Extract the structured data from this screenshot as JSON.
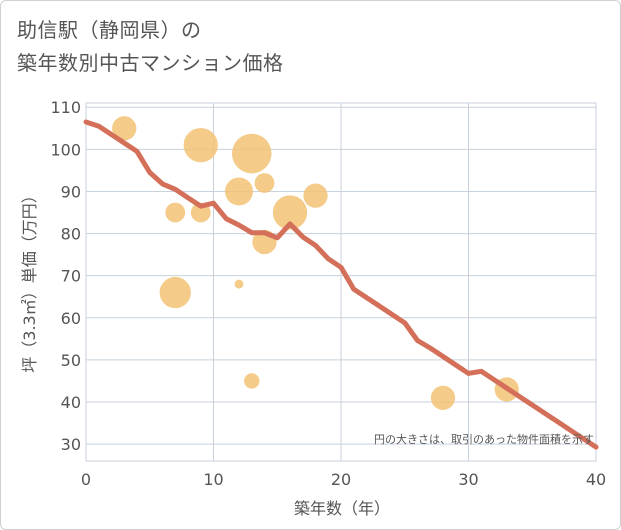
{
  "title": {
    "line1": "助信駅（静岡県）の",
    "line2": "築年数別中古マンション価格"
  },
  "colors": {
    "line": "#d4705a",
    "bubble": "#f2c274",
    "grid": "#c8d2dc",
    "text": "#555555"
  },
  "chart_data": {
    "type": "scatter",
    "title": "助信駅（静岡県）の築年数別中古マンション価格",
    "xlabel": "築年数（年）",
    "ylabel": "坪（3.3㎡）単価（万円）",
    "xlim": [
      0,
      40
    ],
    "ylim": [
      26,
      111
    ],
    "xticks": [
      0,
      10,
      20,
      30,
      40
    ],
    "yticks": [
      30,
      40,
      50,
      60,
      70,
      80,
      90,
      100,
      110
    ],
    "grid": true,
    "note": "円の大きさは、取引のあった物件面積を示す",
    "bubbles": [
      {
        "x": 3,
        "y": 105,
        "size": 3
      },
      {
        "x": 7,
        "y": 85,
        "size": 2
      },
      {
        "x": 7,
        "y": 66,
        "size": 5
      },
      {
        "x": 9,
        "y": 101,
        "size": 6
      },
      {
        "x": 9,
        "y": 85,
        "size": 2
      },
      {
        "x": 12,
        "y": 90,
        "size": 4
      },
      {
        "x": 12,
        "y": 68,
        "size": 0.4
      },
      {
        "x": 13,
        "y": 99,
        "size": 8
      },
      {
        "x": 13,
        "y": 45,
        "size": 1.2
      },
      {
        "x": 14,
        "y": 92,
        "size": 2
      },
      {
        "x": 14,
        "y": 78,
        "size": 3
      },
      {
        "x": 16,
        "y": 85,
        "size": 6
      },
      {
        "x": 18,
        "y": 89,
        "size": 3
      },
      {
        "x": 28,
        "y": 41,
        "size": 3
      },
      {
        "x": 33,
        "y": 43,
        "size": 3
      }
    ],
    "series": [
      {
        "name": "trend",
        "x": [
          0,
          1,
          2,
          3,
          4,
          5,
          6,
          7,
          8,
          9,
          10,
          11,
          12,
          13,
          14,
          15,
          16,
          17,
          18,
          19,
          20,
          21,
          22,
          23,
          24,
          25,
          26,
          27,
          28,
          29,
          30,
          31,
          32,
          33,
          34,
          35,
          36,
          37,
          38,
          39,
          40
        ],
        "values": [
          106.5,
          105.5,
          103.5,
          101.5,
          99.5,
          94.5,
          91.8,
          90.5,
          88.5,
          86.5,
          87.2,
          83.5,
          82,
          80.2,
          80.2,
          79,
          82.3,
          79.2,
          77.2,
          74,
          72,
          66.8,
          64.8,
          62.8,
          60.8,
          58.8,
          54.6,
          52.8,
          50.8,
          48.8,
          46.8,
          47.3,
          45.3,
          43.3,
          41.3,
          39.3,
          37.3,
          35.3,
          33.3,
          31.3,
          29.3
        ]
      }
    ]
  }
}
